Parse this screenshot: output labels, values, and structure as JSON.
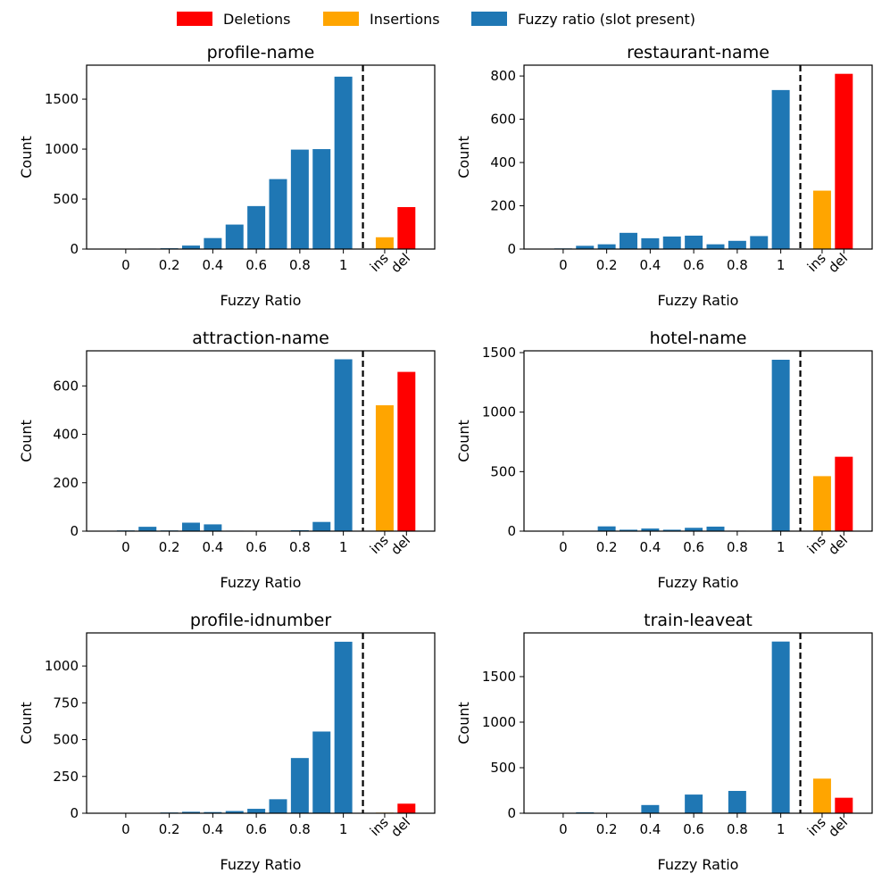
{
  "legend": [
    {
      "label": "Deletions",
      "color": "#ff0000"
    },
    {
      "label": "Insertions",
      "color": "#ffa500"
    },
    {
      "label": "Fuzzy ratio (slot present)",
      "color": "#1f77b4"
    }
  ],
  "colors": {
    "fuzzy": "#1f77b4",
    "ins": "#ffa500",
    "del": "#ff0000"
  },
  "chart_data": [
    {
      "type": "bar",
      "title": "profile-name",
      "xlabel": "Fuzzy Ratio",
      "ylabel": "Count",
      "x": [
        0,
        0.1,
        0.2,
        0.3,
        0.4,
        0.5,
        0.6,
        0.7,
        0.8,
        0.9,
        1.0
      ],
      "fuzzy_values": [
        2,
        5,
        8,
        35,
        110,
        245,
        430,
        700,
        995,
        1000,
        1725
      ],
      "ins": 118,
      "del": 420,
      "ylim": [
        0,
        1840
      ],
      "yticks": [
        0,
        500,
        1000,
        1500
      ],
      "xticks": [
        0,
        0.2,
        0.4,
        0.6,
        0.8,
        1
      ],
      "xtick_labels": [
        "0",
        "0.2",
        "0.4",
        "0.6",
        "0.8",
        "1"
      ],
      "extra_labels": [
        "ins",
        "del"
      ]
    },
    {
      "type": "bar",
      "title": "restaurant-name",
      "xlabel": "Fuzzy Ratio",
      "ylabel": "Count",
      "x": [
        0,
        0.1,
        0.2,
        0.3,
        0.4,
        0.5,
        0.6,
        0.7,
        0.8,
        0.9,
        1.0
      ],
      "fuzzy_values": [
        3,
        15,
        22,
        75,
        50,
        58,
        62,
        22,
        38,
        60,
        735
      ],
      "ins": 270,
      "del": 810,
      "ylim": [
        0,
        850
      ],
      "yticks": [
        0,
        200,
        400,
        600,
        800
      ],
      "xticks": [
        0,
        0.2,
        0.4,
        0.6,
        0.8,
        1
      ],
      "xtick_labels": [
        "0",
        "0.2",
        "0.4",
        "0.6",
        "0.8",
        "1"
      ],
      "extra_labels": [
        "ins",
        "del"
      ]
    },
    {
      "type": "bar",
      "title": "attraction-name",
      "xlabel": "Fuzzy Ratio",
      "ylabel": "Count",
      "x": [
        0,
        0.1,
        0.2,
        0.3,
        0.4,
        0.5,
        0.6,
        0.7,
        0.8,
        0.9,
        1.0
      ],
      "fuzzy_values": [
        3,
        18,
        3,
        35,
        28,
        2,
        1,
        1,
        4,
        38,
        710
      ],
      "ins": 520,
      "del": 658,
      "ylim": [
        0,
        745
      ],
      "yticks": [
        0,
        200,
        400,
        600
      ],
      "xticks": [
        0,
        0.2,
        0.4,
        0.6,
        0.8,
        1
      ],
      "xtick_labels": [
        "0",
        "0.2",
        "0.4",
        "0.6",
        "0.8",
        "1"
      ],
      "extra_labels": [
        "ins",
        "del"
      ]
    },
    {
      "type": "bar",
      "title": "hotel-name",
      "xlabel": "Fuzzy Ratio",
      "ylabel": "Count",
      "x": [
        0,
        0.1,
        0.2,
        0.3,
        0.4,
        0.5,
        0.6,
        0.7,
        0.8,
        0.9,
        1.0
      ],
      "fuzzy_values": [
        2,
        2,
        40,
        12,
        22,
        12,
        28,
        38,
        4,
        2,
        1440
      ],
      "ins": 462,
      "del": 625,
      "ylim": [
        0,
        1515
      ],
      "yticks": [
        0,
        500,
        1000,
        1500
      ],
      "xticks": [
        0,
        0.2,
        0.4,
        0.6,
        0.8,
        1
      ],
      "xtick_labels": [
        "0",
        "0.2",
        "0.4",
        "0.6",
        "0.8",
        "1"
      ],
      "extra_labels": [
        "ins",
        "del"
      ]
    },
    {
      "type": "bar",
      "title": "profile-idnumber",
      "xlabel": "Fuzzy Ratio",
      "ylabel": "Count",
      "x": [
        0,
        0.1,
        0.2,
        0.3,
        0.4,
        0.5,
        0.6,
        0.7,
        0.8,
        0.9,
        1.0
      ],
      "fuzzy_values": [
        2,
        2,
        5,
        10,
        8,
        15,
        30,
        95,
        375,
        555,
        1165
      ],
      "ins": 4,
      "del": 65,
      "ylim": [
        0,
        1225
      ],
      "yticks": [
        0,
        250,
        500,
        750,
        1000
      ],
      "xticks": [
        0,
        0.2,
        0.4,
        0.6,
        0.8,
        1
      ],
      "xtick_labels": [
        "0",
        "0.2",
        "0.4",
        "0.6",
        "0.8",
        "1"
      ],
      "extra_labels": [
        "ins",
        "del"
      ]
    },
    {
      "type": "bar",
      "title": "train-leaveat",
      "xlabel": "Fuzzy Ratio",
      "ylabel": "Count",
      "x": [
        0,
        0.1,
        0.2,
        0.3,
        0.4,
        0.5,
        0.6,
        0.7,
        0.8,
        0.9,
        1.0
      ],
      "fuzzy_values": [
        3,
        10,
        4,
        3,
        90,
        3,
        205,
        3,
        245,
        3,
        1885
      ],
      "ins": 380,
      "del": 170,
      "ylim": [
        0,
        1980
      ],
      "yticks": [
        0,
        500,
        1000,
        1500
      ],
      "xticks": [
        0,
        0.2,
        0.4,
        0.6,
        0.8,
        1
      ],
      "xtick_labels": [
        "0",
        "0.2",
        "0.4",
        "0.6",
        "0.8",
        "1"
      ],
      "extra_labels": [
        "ins",
        "del"
      ]
    }
  ]
}
